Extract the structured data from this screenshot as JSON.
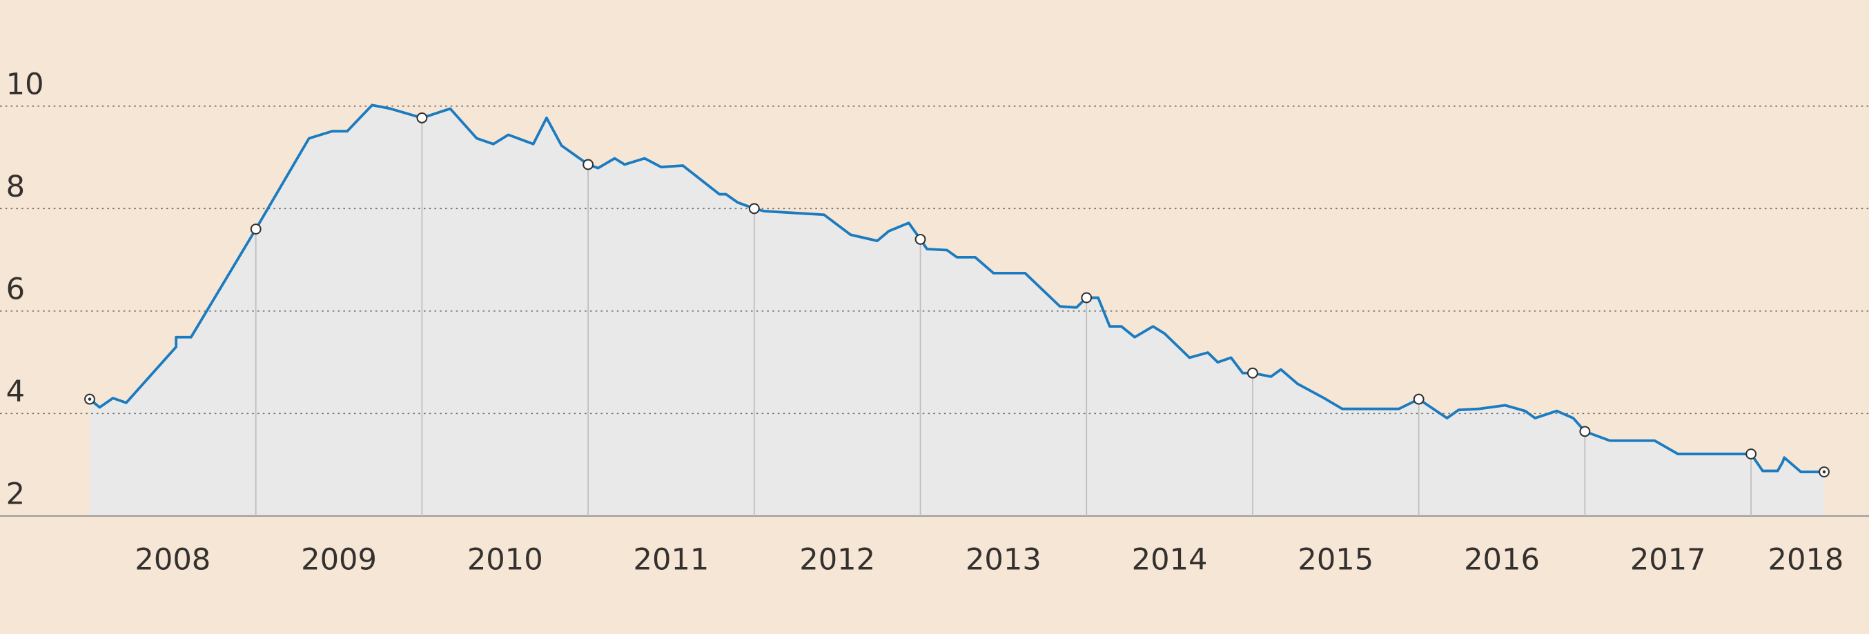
{
  "chart_data": {
    "type": "line",
    "x": [
      2008.0,
      2008.06,
      2008.14,
      2008.22,
      2008.52,
      2008.52,
      2008.61,
      2009.0,
      2009.32,
      2009.46,
      2009.55,
      2009.7,
      2009.81,
      2010.0,
      2010.17,
      2010.33,
      2010.43,
      2010.52,
      2010.67,
      2010.75,
      2010.84,
      2011.0,
      2011.06,
      2011.16,
      2011.22,
      2011.34,
      2011.44,
      2011.57,
      2011.79,
      2011.83,
      2011.9,
      2012.0,
      2012.06,
      2012.42,
      2012.58,
      2012.74,
      2012.81,
      2012.93,
      2013.0,
      2013.04,
      2013.16,
      2013.22,
      2013.33,
      2013.44,
      2013.63,
      2013.84,
      2013.94,
      2014.0,
      2014.07,
      2014.14,
      2014.21,
      2014.29,
      2014.4,
      2014.47,
      2014.62,
      2014.73,
      2014.79,
      2014.87,
      2014.94,
      2015.0,
      2015.11,
      2015.17,
      2015.27,
      2015.43,
      2015.54,
      2015.88,
      2016.0,
      2016.17,
      2016.24,
      2016.36,
      2016.52,
      2016.64,
      2016.7,
      2016.83,
      2016.93,
      2017.0,
      2017.15,
      2017.42,
      2017.56,
      2018.0,
      2018.07,
      2018.16,
      2018.19,
      2018.2,
      2018.3,
      2018.44
    ],
    "series": [
      {
        "color": "#1a7bc0",
        "values": [
          4.28,
          4.12,
          4.3,
          4.21,
          5.3,
          5.49,
          5.49,
          7.6,
          9.37,
          9.51,
          9.51,
          10.02,
          9.95,
          9.77,
          9.95,
          9.37,
          9.26,
          9.44,
          9.26,
          9.77,
          9.23,
          8.86,
          8.79,
          8.98,
          8.86,
          8.98,
          8.81,
          8.84,
          8.28,
          8.28,
          8.12,
          8.0,
          7.95,
          7.88,
          7.49,
          7.37,
          7.56,
          7.72,
          7.4,
          7.21,
          7.19,
          7.05,
          7.05,
          6.74,
          6.74,
          6.09,
          6.07,
          6.26,
          6.26,
          5.7,
          5.7,
          5.49,
          5.7,
          5.56,
          5.09,
          5.19,
          5.0,
          5.09,
          4.79,
          4.79,
          4.72,
          4.86,
          4.58,
          4.3,
          4.09,
          4.09,
          4.28,
          3.91,
          4.07,
          4.09,
          4.16,
          4.05,
          3.91,
          4.05,
          3.91,
          3.65,
          3.47,
          3.47,
          3.21,
          3.21,
          2.88,
          2.88,
          3.05,
          3.14,
          2.86,
          2.86
        ]
      }
    ],
    "area_color": "#e9e9ea",
    "xlim": [
      2007.46,
      2018.71
    ],
    "xticks": [
      2008,
      2009,
      2010,
      2011,
      2012,
      2013,
      2014,
      2015,
      2016,
      2017,
      2018
    ],
    "ylim": [
      2,
      12
    ],
    "yticks": [
      2,
      4,
      6,
      8,
      10
    ],
    "grid": true
  }
}
